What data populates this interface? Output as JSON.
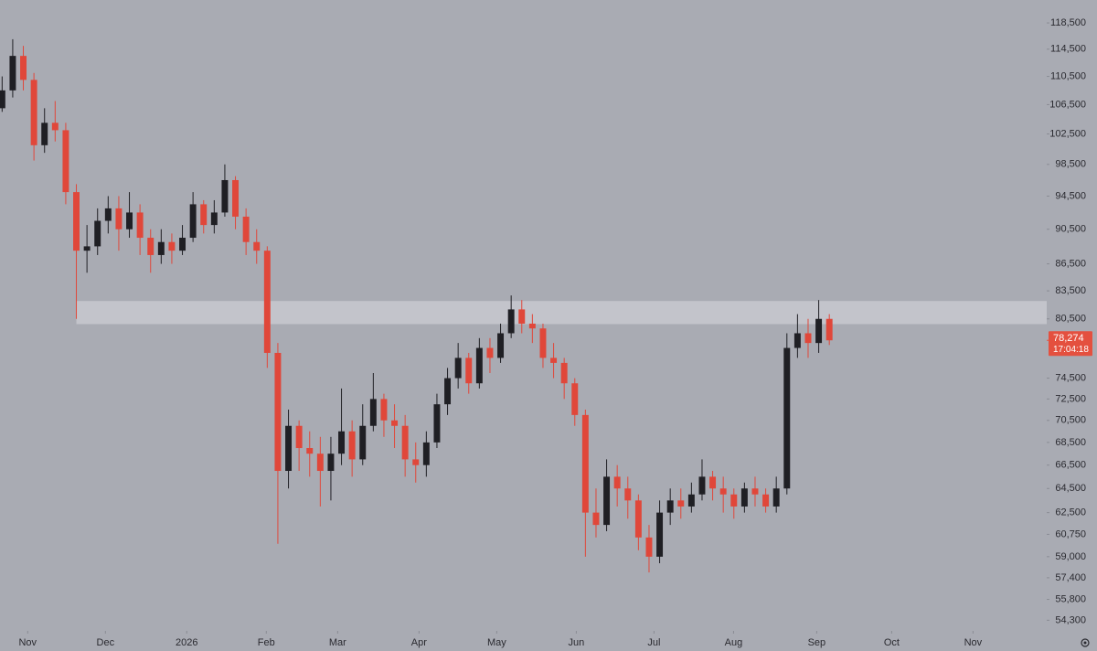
{
  "chart_data": {
    "type": "candlestick",
    "log_scale": true,
    "up_color": "#1f1f24",
    "down_color": "#e0473a",
    "zone_color": "#c3c4cb",
    "zone": {
      "from": 79950,
      "to": 82400,
      "start": 7
    },
    "open": [
      106000,
      108500,
      113500,
      110000,
      101000,
      104000,
      103000,
      95000,
      88000,
      88500,
      91500,
      93000,
      90500,
      92500,
      89500,
      87500,
      89000,
      88000,
      89500,
      93500,
      91000,
      92500,
      96500,
      92000,
      89000,
      88000,
      77000,
      66000,
      70000,
      68000,
      67500,
      66000,
      67500,
      69500,
      67000,
      70000,
      72500,
      70500,
      70000,
      67000,
      66500,
      68500,
      72000,
      74500,
      76500,
      74000,
      77500,
      76500,
      79000,
      81500,
      80000,
      79500,
      76500,
      76000,
      74000,
      71000,
      62500,
      61500,
      65500,
      64500,
      63500,
      60500,
      59000,
      62500,
      63500,
      63000,
      64000,
      65500,
      64500,
      64000,
      63000,
      64500,
      64000,
      63000,
      64500,
      77500,
      79000,
      78000,
      80500
    ],
    "high": [
      110500,
      116000,
      115000,
      111000,
      106000,
      107000,
      104000,
      96000,
      91000,
      93000,
      94500,
      94500,
      95000,
      93500,
      90500,
      90500,
      90000,
      91000,
      95000,
      94000,
      94000,
      98500,
      97000,
      93000,
      90500,
      88500,
      78000,
      71500,
      70500,
      69500,
      69000,
      69000,
      73500,
      70500,
      72000,
      75000,
      73000,
      72000,
      71000,
      68500,
      69500,
      73000,
      75500,
      78000,
      77000,
      78500,
      78500,
      80000,
      83000,
      82500,
      81000,
      80000,
      78000,
      76500,
      74500,
      71500,
      64500,
      67000,
      66500,
      65500,
      64000,
      61500,
      63500,
      64500,
      64500,
      65000,
      67000,
      66000,
      65500,
      64500,
      65000,
      65500,
      64500,
      65500,
      79000,
      81000,
      80500,
      82500,
      81000
    ],
    "low": [
      105500,
      107500,
      108500,
      99000,
      100000,
      101500,
      93500,
      80500,
      85500,
      87500,
      90000,
      88000,
      89500,
      87500,
      85500,
      86500,
      86500,
      87500,
      89000,
      90000,
      90000,
      92000,
      90500,
      87500,
      86500,
      75500,
      60000,
      64500,
      66000,
      65500,
      63000,
      63500,
      66500,
      65500,
      66500,
      69500,
      69000,
      68000,
      65500,
      65000,
      65500,
      68000,
      71000,
      73500,
      73000,
      73500,
      75000,
      76000,
      78500,
      79000,
      78000,
      75500,
      74500,
      72500,
      70000,
      59000,
      60500,
      61000,
      63000,
      62000,
      59500,
      57800,
      58500,
      61500,
      62000,
      62500,
      63500,
      63500,
      62500,
      62000,
      62500,
      63000,
      62500,
      62500,
      64000,
      76500,
      76500,
      77000,
      77800
    ],
    "close": [
      108500,
      113500,
      110000,
      101000,
      104000,
      103000,
      95000,
      88000,
      88500,
      91500,
      93000,
      90500,
      92500,
      89500,
      87500,
      89000,
      88000,
      89500,
      93500,
      91000,
      92500,
      96500,
      92000,
      89000,
      88000,
      77000,
      66000,
      70000,
      68000,
      67500,
      66000,
      67500,
      69500,
      67000,
      70000,
      72500,
      70500,
      70000,
      67000,
      66500,
      68500,
      72000,
      74500,
      76500,
      74000,
      77500,
      76500,
      79000,
      81500,
      80000,
      79500,
      76500,
      76000,
      74000,
      71000,
      62500,
      61500,
      65500,
      64500,
      63500,
      60500,
      59000,
      62500,
      63500,
      63000,
      64000,
      65500,
      64500,
      64000,
      63000,
      64500,
      64000,
      63000,
      64500,
      77500,
      79000,
      78000,
      80500,
      78274
    ],
    "xlim": [
      -0.2,
      98.5
    ],
    "xticks": [
      {
        "value": 2.41,
        "label": "Nov"
      },
      {
        "value": 9.74,
        "label": "Dec"
      },
      {
        "value": 17.41,
        "label": "2026"
      },
      {
        "value": 24.91,
        "label": "Feb"
      },
      {
        "value": 31.64,
        "label": "Mar"
      },
      {
        "value": 39.31,
        "label": "Apr"
      },
      {
        "value": 46.64,
        "label": "May"
      },
      {
        "value": 54.14,
        "label": "Jun"
      },
      {
        "value": 61.47,
        "label": "Jul"
      },
      {
        "value": 68.97,
        "label": "Aug"
      },
      {
        "value": 76.81,
        "label": "Sep"
      },
      {
        "value": 83.88,
        "label": "Oct"
      },
      {
        "value": 91.55,
        "label": "Nov"
      }
    ],
    "ylim": [
      53550,
      122100
    ],
    "yticks": [
      {
        "value": 118500,
        "label": "118,500"
      },
      {
        "value": 114500,
        "label": "114,500"
      },
      {
        "value": 110500,
        "label": "110,500"
      },
      {
        "value": 106500,
        "label": "106,500"
      },
      {
        "value": 102500,
        "label": "102,500"
      },
      {
        "value": 98500,
        "label": "98,500"
      },
      {
        "value": 94500,
        "label": "94,500"
      },
      {
        "value": 90500,
        "label": "90,500"
      },
      {
        "value": 86500,
        "label": "86,500"
      },
      {
        "value": 83500,
        "label": "83,500"
      },
      {
        "value": 80500,
        "label": "80,500"
      },
      {
        "value": 74500,
        "label": "74,500"
      },
      {
        "value": 72500,
        "label": "72,500"
      },
      {
        "value": 70500,
        "label": "70,500"
      },
      {
        "value": 68500,
        "label": "68,500"
      },
      {
        "value": 66500,
        "label": "66,500"
      },
      {
        "value": 64500,
        "label": "64,500"
      },
      {
        "value": 62500,
        "label": "62,500"
      },
      {
        "value": 60750,
        "label": "60,750"
      },
      {
        "value": 59000,
        "label": "59,000"
      },
      {
        "value": 57400,
        "label": "57,400"
      },
      {
        "value": 55800,
        "label": "55,800"
      },
      {
        "value": 54300,
        "label": "54,300"
      }
    ],
    "price_label": {
      "value": 78274,
      "label": "78,274"
    },
    "countdown": "17:04:18",
    "price_label_color": "#e4503f"
  }
}
